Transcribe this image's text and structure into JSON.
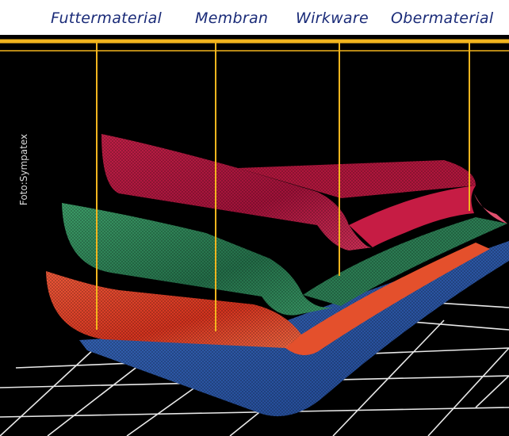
{
  "labels": {
    "futtermaterial": "Futtermaterial",
    "membran": "Membran",
    "wirkware": "Wirkware",
    "obermaterial": "Obermaterial"
  },
  "photo_credit": "Foto:Sympatex",
  "colors": {
    "label_text": "#1a2b78",
    "leader_line": "#f2b51e",
    "background": "#000000",
    "grid": "#e8e8e8",
    "layer_top": "#b8183c",
    "layer_green": "#2f8a5a",
    "layer_red": "#e2402a",
    "layer_blue": "#2f5fb0"
  }
}
